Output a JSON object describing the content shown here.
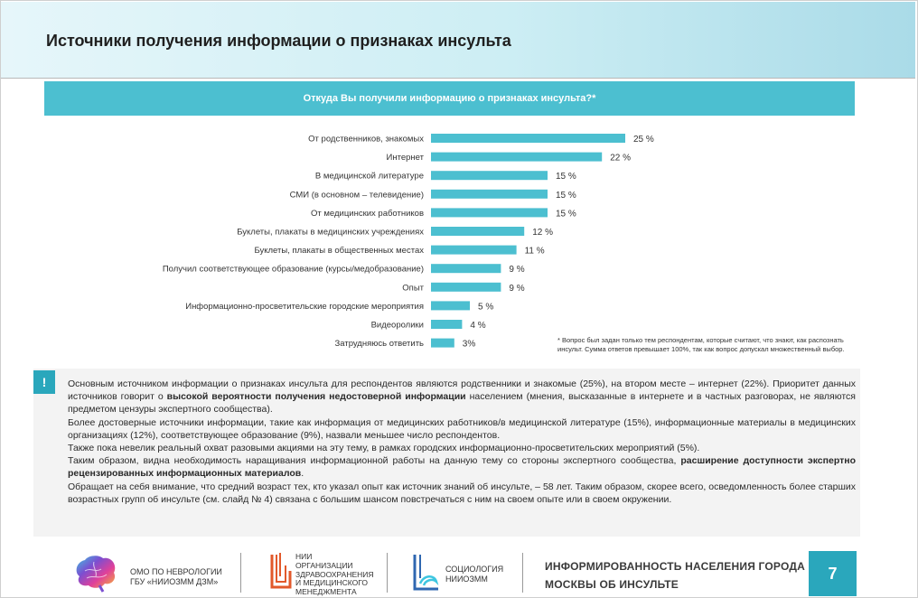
{
  "header": {
    "title": "Источники получения информации о признаках инсульта"
  },
  "banner": {
    "question": "Откуда Вы получили информацию о признаках инсульта?*"
  },
  "chart_data": {
    "type": "bar",
    "orientation": "horizontal",
    "title": "Откуда Вы получили информацию о признаках инсульта?*",
    "categories": [
      "От родственников, знакомых",
      "Интернет",
      "В медицинской литературе",
      "СМИ (в основном – телевидение)",
      "От медицинских работников",
      "Буклеты, плакаты в медицинских учреждениях",
      "Буклеты, плакаты в общественных местах",
      "Получил соответствующее образование (курсы/медобразование)",
      "Опыт",
      "Информационно-просветительские городские мероприятия",
      "Видеоролики",
      "Затрудняюсь ответить"
    ],
    "values": [
      25,
      22,
      15,
      15,
      15,
      12,
      11,
      9,
      9,
      5,
      4,
      3
    ],
    "value_labels": [
      "25 %",
      "22 %",
      "15 %",
      "15 %",
      "15 %",
      "12 %",
      "11 %",
      "9 %",
      "9 %",
      "5 %",
      "4 %",
      "3%"
    ],
    "unit": "%",
    "bar_color": "#4cbfd0"
  },
  "footnote": "* Вопрос был задан только тем респондентам, которые считают, что знают, как распознать инсульт. Сумма ответов превышает 100%, так как вопрос допускал множественный выбор.",
  "note": {
    "icon": "!",
    "p1_a": "Основным источником информации о признаках инсульта для респондентов являются родственники и знакомые (25%), на втором месте – интернет (22%). Приоритет данных источников говорит о ",
    "p1_b": "высокой вероятности получения недостоверной информации",
    "p1_c": " населением (мнения, высказанные в интернете и в частных разговорах, не являются предметом цензуры экспертного сообщества).",
    "p2": "Более достоверные источники информации, такие как информация от медицинских работников/в медицинской литературе (15%), информационные материалы в медицинских организациях (12%), соответствующее образование (9%), назвали меньшее число респондентов.",
    "p3": "Также пока невелик реальный охват разовыми акциями на эту тему, в рамках городских информационно-просветительских мероприятий (5%).",
    "p4_a": "Таким образом, видна необходимость наращивания информационной работы на данную тему со стороны экспертного сообщества, ",
    "p4_b": "расширение доступности экспертно рецензированных информационных материалов",
    "p4_c": ".",
    "p5": "Обращает на себя внимание, что средний возраст тех, кто указал опыт как источник знаний об инсульте, – 58 лет. Таким образом, скорее всего, осведомленность более старших возрастных групп об инсульте (см. слайд № 4) связана с большим шансом повстречаться с ним на своем опыте или в своем окружении."
  },
  "footer": {
    "org1_line1": "ОМО ПО НЕВРОЛОГИИ",
    "org1_line2": "ГБУ «НИИОЗММ ДЗМ»",
    "org2_line1": "НИИ",
    "org2_line2": "ОРГАНИЗАЦИИ",
    "org2_line3": "ЗДРАВООХРАНЕНИЯ",
    "org2_line4": "И МЕДИЦИНСКОГО",
    "org2_line5": "МЕНЕДЖМЕНТА",
    "org3_line1": "СОЦИОЛОГИЯ",
    "org3_line2": "НИИОЗММ",
    "title_line1": "ИНФОРМИРОВАННОСТЬ НАСЕЛЕНИЯ ГОРОДА",
    "title_line2": "МОСКВЫ ОБ  ИНСУЛЬТЕ",
    "page_number": "7"
  }
}
